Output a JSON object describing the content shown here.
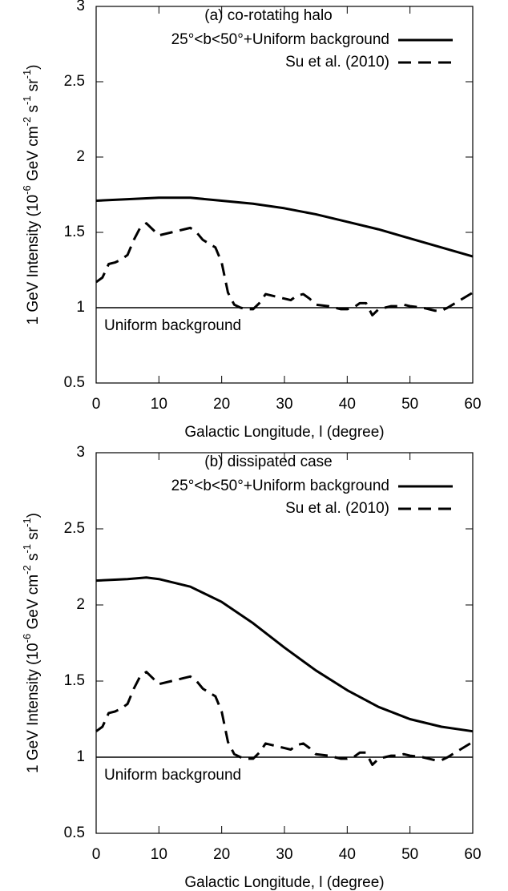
{
  "chart_data": [
    {
      "type": "line",
      "title": "(a) co-rotating halo",
      "xlabel": "Galactic Longitude, l (degree)",
      "ylabel_parts": [
        "1 GeV Intensity (10",
        "-6",
        " GeV cm",
        "-2",
        " s",
        "-1",
        " sr",
        "-1",
        ")"
      ],
      "xlim": [
        0,
        60
      ],
      "xticks": [
        0,
        10,
        20,
        30,
        40,
        50,
        60
      ],
      "ylim": [
        0.5,
        3
      ],
      "yticks": [
        0.5,
        1,
        1.5,
        2,
        2.5,
        3
      ],
      "hline": 1,
      "hline_label": "Uniform background",
      "legend": "upper right",
      "series": [
        {
          "name": "25°<b<50°+Uniform background",
          "color": "#000000",
          "dash": false,
          "x": [
            0,
            5,
            10,
            15,
            20,
            25,
            30,
            35,
            40,
            45,
            50,
            55,
            60
          ],
          "values": [
            1.71,
            1.72,
            1.73,
            1.73,
            1.71,
            1.69,
            1.66,
            1.62,
            1.57,
            1.52,
            1.46,
            1.4,
            1.34
          ]
        },
        {
          "name": "Su et al. (2010)",
          "color": "#000000",
          "dash": true,
          "x": [
            0,
            1,
            2,
            3,
            4,
            5,
            6,
            7,
            8,
            9,
            10,
            12,
            14,
            15,
            16,
            17,
            19,
            20,
            21,
            22,
            23,
            24,
            25,
            26,
            27,
            28,
            29,
            30,
            31,
            32,
            33,
            34,
            35,
            37,
            39,
            40,
            41,
            42,
            43,
            44,
            45,
            46,
            47,
            48,
            49,
            50,
            52,
            54,
            55,
            56,
            58,
            60
          ],
          "values": [
            1.17,
            1.2,
            1.29,
            1.3,
            1.32,
            1.35,
            1.45,
            1.53,
            1.56,
            1.52,
            1.48,
            1.5,
            1.52,
            1.53,
            1.5,
            1.45,
            1.4,
            1.3,
            1.1,
            1.02,
            1.0,
            0.99,
            0.99,
            1.03,
            1.09,
            1.08,
            1.07,
            1.06,
            1.05,
            1.08,
            1.09,
            1.06,
            1.02,
            1.01,
            0.99,
            0.99,
            1.0,
            1.03,
            1.03,
            0.95,
            0.99,
            1.0,
            1.01,
            1.01,
            1.02,
            1.01,
            1.0,
            0.98,
            0.98,
            1.0,
            1.05,
            1.1
          ]
        }
      ]
    },
    {
      "type": "line",
      "title": "(b) dissipated case",
      "xlabel": "Galactic Longitude, l (degree)",
      "ylabel_parts": [
        "1 GeV Intensity (10",
        "-6",
        " GeV cm",
        "-2",
        " s",
        "-1",
        " sr",
        "-1",
        ")"
      ],
      "xlim": [
        0,
        60
      ],
      "xticks": [
        0,
        10,
        20,
        30,
        40,
        50,
        60
      ],
      "ylim": [
        0.5,
        3
      ],
      "yticks": [
        0.5,
        1,
        1.5,
        2,
        2.5,
        3
      ],
      "hline": 1,
      "hline_label": "Uniform background",
      "legend": "upper right",
      "series": [
        {
          "name": "25°<b<50°+Uniform background",
          "color": "#000000",
          "dash": false,
          "x": [
            0,
            5,
            8,
            10,
            15,
            20,
            25,
            30,
            35,
            40,
            45,
            50,
            55,
            60
          ],
          "values": [
            2.16,
            2.17,
            2.18,
            2.17,
            2.12,
            2.02,
            1.88,
            1.72,
            1.57,
            1.44,
            1.33,
            1.25,
            1.2,
            1.17
          ]
        },
        {
          "name": "Su et al. (2010)",
          "color": "#000000",
          "dash": true,
          "x": [
            0,
            1,
            2,
            3,
            4,
            5,
            6,
            7,
            8,
            9,
            10,
            12,
            14,
            15,
            16,
            17,
            19,
            20,
            21,
            22,
            23,
            24,
            25,
            26,
            27,
            28,
            29,
            30,
            31,
            32,
            33,
            34,
            35,
            37,
            39,
            40,
            41,
            42,
            43,
            44,
            45,
            46,
            47,
            48,
            49,
            50,
            52,
            54,
            55,
            56,
            58,
            60
          ],
          "values": [
            1.17,
            1.2,
            1.29,
            1.3,
            1.32,
            1.35,
            1.45,
            1.53,
            1.56,
            1.52,
            1.48,
            1.5,
            1.52,
            1.53,
            1.5,
            1.45,
            1.4,
            1.3,
            1.1,
            1.02,
            1.0,
            0.99,
            0.99,
            1.03,
            1.09,
            1.08,
            1.07,
            1.06,
            1.05,
            1.08,
            1.09,
            1.06,
            1.02,
            1.01,
            0.99,
            0.99,
            1.0,
            1.03,
            1.03,
            0.95,
            0.99,
            1.0,
            1.01,
            1.01,
            1.02,
            1.01,
            1.0,
            0.98,
            0.98,
            1.0,
            1.05,
            1.1
          ]
        }
      ]
    }
  ]
}
